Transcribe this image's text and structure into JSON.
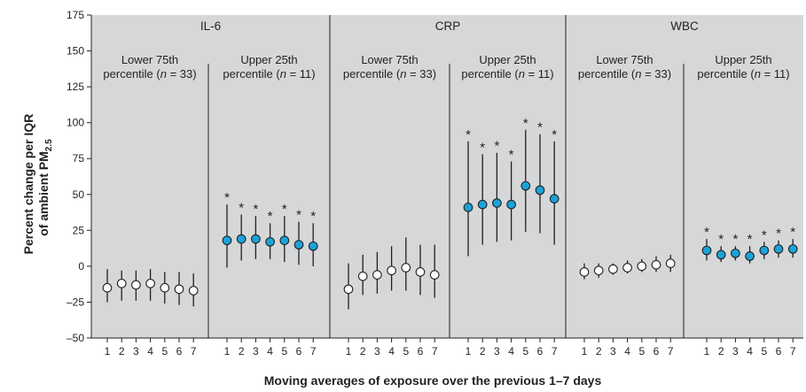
{
  "chart_data": {
    "type": "scatter",
    "ylabel": "Percent change per IQR of ambient PM2.5",
    "ylabel_lines": [
      "Percent change per IQR",
      "of ambient PM",
      "2.5"
    ],
    "xlabel": "Moving averages of exposure over the previous 1–7 days",
    "x": [
      1,
      2,
      3,
      4,
      5,
      6,
      7
    ],
    "x_tick_labels": [
      "1",
      "2",
      "3",
      "4",
      "5",
      "6",
      "7"
    ],
    "ylim": [
      -50,
      175
    ],
    "y_ticks": [
      175,
      150,
      125,
      100,
      75,
      50,
      25,
      0,
      -25,
      -50
    ],
    "y_tick_labels": [
      "175",
      "150",
      "125",
      "100",
      "75",
      "50",
      "25",
      "0",
      "–25",
      "–50"
    ],
    "grid": false,
    "significance_marker": "*",
    "colors": {
      "panel_background": "#d6d7d8",
      "lower_marker_fill": "#ffffff",
      "upper_marker_fill": "#1aa3d9",
      "line": "#231f20"
    },
    "groups": [
      {
        "name": "IL-6",
        "series": [
          {
            "label_line1": "Lower 75th",
            "label_line2": "percentile (",
            "label_n": "n",
            "label_rest": " = 33)",
            "group": "lower",
            "estimate": [
              -15,
              -12,
              -13,
              -12,
              -15,
              -16,
              -17
            ],
            "ci_low": [
              -25,
              -24,
              -24,
              -24,
              -26,
              -27,
              -28
            ],
            "ci_high": [
              -2,
              -3,
              -3,
              -2,
              -4,
              -4,
              -5
            ],
            "significant": [
              false,
              false,
              false,
              false,
              false,
              false,
              false
            ]
          },
          {
            "label_line1": "Upper 25th",
            "label_line2": "percentile (",
            "label_n": "n",
            "label_rest": " = 11)",
            "group": "upper",
            "estimate": [
              18,
              19,
              19,
              17,
              18,
              15,
              14
            ],
            "ci_low": [
              -1,
              4,
              5,
              5,
              3,
              1,
              0
            ],
            "ci_high": [
              43,
              36,
              35,
              30,
              35,
              31,
              30
            ],
            "significant": [
              true,
              true,
              true,
              true,
              true,
              true,
              true
            ]
          }
        ]
      },
      {
        "name": "CRP",
        "series": [
          {
            "label_line1": "Lower 75th",
            "label_line2": "percentile (",
            "label_n": "n",
            "label_rest": " = 33)",
            "group": "lower",
            "estimate": [
              -16,
              -7,
              -6,
              -3,
              -1,
              -4,
              -6
            ],
            "ci_low": [
              -30,
              -20,
              -19,
              -17,
              -17,
              -20,
              -22
            ],
            "ci_high": [
              2,
              8,
              10,
              14,
              20,
              15,
              15
            ],
            "significant": [
              false,
              false,
              false,
              false,
              false,
              false,
              false
            ]
          },
          {
            "label_line1": "Upper 25th",
            "label_line2": "percentile (",
            "label_n": "n",
            "label_rest": " = 11)",
            "group": "upper",
            "estimate": [
              41,
              43,
              44,
              43,
              56,
              53,
              47
            ],
            "ci_low": [
              7,
              15,
              17,
              18,
              24,
              23,
              15
            ],
            "ci_high": [
              87,
              78,
              79,
              73,
              95,
              92,
              87
            ],
            "significant": [
              true,
              true,
              true,
              true,
              true,
              true,
              true
            ]
          }
        ]
      },
      {
        "name": "WBC",
        "series": [
          {
            "label_line1": "Lower 75th",
            "label_line2": "percentile (",
            "label_n": "n",
            "label_rest": " = 33)",
            "group": "lower",
            "estimate": [
              -4,
              -3,
              -2,
              -1,
              0,
              1,
              2
            ],
            "ci_low": [
              -9,
              -8,
              -6,
              -5,
              -4,
              -4,
              -4
            ],
            "ci_high": [
              2,
              2,
              2,
              4,
              5,
              7,
              8
            ],
            "significant": [
              false,
              false,
              false,
              false,
              false,
              false,
              false
            ]
          },
          {
            "label_line1": "Upper 25th",
            "label_line2": "percentile (",
            "label_n": "n",
            "label_rest": " = 11)",
            "group": "upper",
            "estimate": [
              11,
              8,
              9,
              7,
              11,
              12,
              12
            ],
            "ci_low": [
              4,
              3,
              4,
              2,
              5,
              6,
              6
            ],
            "ci_high": [
              19,
              14,
              14,
              14,
              17,
              18,
              19
            ],
            "significant": [
              true,
              true,
              true,
              true,
              true,
              true,
              true
            ]
          }
        ]
      }
    ]
  }
}
